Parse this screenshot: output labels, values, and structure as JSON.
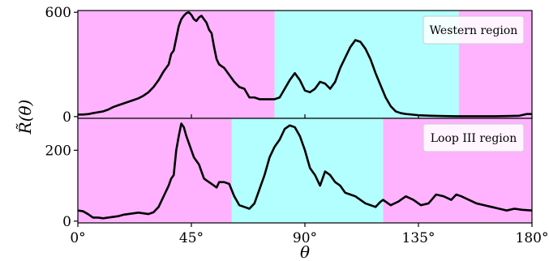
{
  "chart_data": [
    {
      "type": "line",
      "panel": "top",
      "annotation": "Western region",
      "xlim": [
        0,
        180
      ],
      "ylim": [
        -10,
        610
      ],
      "yticks": [
        0,
        600
      ],
      "ytick_labels": [
        "0",
        "600"
      ],
      "shaded_regions": [
        {
          "start": 0,
          "end": 78,
          "color": "#ffb3ff"
        },
        {
          "start": 78,
          "end": 151,
          "color": "#b3ffff"
        },
        {
          "start": 151,
          "end": 180,
          "color": "#ffb3ff"
        }
      ],
      "x": [
        0,
        2,
        4,
        6,
        8,
        10,
        12,
        14,
        16,
        18,
        20,
        22,
        24,
        26,
        28,
        30,
        32,
        34,
        36,
        37,
        38,
        39,
        40,
        41,
        42,
        43,
        44,
        45,
        46,
        47,
        48,
        49,
        50,
        51,
        52,
        53,
        54,
        55,
        56,
        58,
        60,
        62,
        64,
        66,
        68,
        70,
        72,
        74,
        76,
        78,
        80,
        82,
        84,
        86,
        88,
        90,
        92,
        94,
        96,
        98,
        100,
        102,
        104,
        106,
        108,
        110,
        112,
        114,
        116,
        118,
        120,
        122,
        124,
        126,
        128,
        130,
        135,
        140,
        145,
        150,
        155,
        160,
        165,
        170,
        175,
        178,
        180
      ],
      "values": [
        12,
        12,
        14,
        20,
        25,
        30,
        40,
        55,
        65,
        75,
        85,
        95,
        105,
        120,
        140,
        170,
        210,
        260,
        300,
        360,
        380,
        450,
        520,
        560,
        580,
        595,
        600,
        585,
        560,
        550,
        570,
        580,
        560,
        540,
        500,
        480,
        400,
        330,
        300,
        280,
        240,
        200,
        170,
        160,
        110,
        110,
        100,
        100,
        100,
        100,
        110,
        160,
        210,
        250,
        210,
        150,
        140,
        160,
        200,
        190,
        160,
        200,
        280,
        340,
        400,
        440,
        430,
        390,
        330,
        250,
        180,
        110,
        60,
        30,
        20,
        15,
        8,
        5,
        3,
        2,
        2,
        2,
        2,
        3,
        5,
        15,
        15
      ],
      "series_color": "#000000"
    },
    {
      "type": "line",
      "panel": "bottom",
      "annotation": "Loop III region",
      "xlim": [
        0,
        180
      ],
      "ylim": [
        -5,
        290
      ],
      "yticks": [
        0,
        200
      ],
      "ytick_labels": [
        "0",
        "200"
      ],
      "xticks": [
        0,
        45,
        90,
        135,
        180
      ],
      "xtick_labels": [
        "0°",
        "45°",
        "90°",
        "135°",
        "180°"
      ],
      "shaded_regions": [
        {
          "start": 0,
          "end": 61,
          "color": "#ffb3ff"
        },
        {
          "start": 61,
          "end": 121,
          "color": "#b3ffff"
        },
        {
          "start": 121,
          "end": 180,
          "color": "#ffb3ff"
        }
      ],
      "x": [
        0,
        2,
        4,
        6,
        8,
        10,
        12,
        14,
        16,
        18,
        20,
        22,
        24,
        26,
        28,
        30,
        32,
        34,
        36,
        37,
        38,
        39,
        40,
        41,
        42,
        43,
        44,
        45,
        46,
        48,
        50,
        52,
        54,
        55,
        56,
        58,
        60,
        62,
        64,
        66,
        68,
        70,
        72,
        74,
        76,
        78,
        80,
        82,
        84,
        86,
        88,
        90,
        92,
        94,
        96,
        98,
        100,
        102,
        104,
        106,
        108,
        110,
        112,
        114,
        116,
        118,
        120,
        121,
        124,
        127,
        130,
        133,
        136,
        139,
        142,
        145,
        148,
        150,
        152,
        155,
        158,
        161,
        164,
        167,
        170,
        173,
        176,
        180
      ],
      "values": [
        30,
        28,
        20,
        10,
        10,
        8,
        10,
        12,
        14,
        18,
        20,
        22,
        24,
        22,
        20,
        25,
        40,
        70,
        100,
        120,
        130,
        200,
        240,
        275,
        265,
        240,
        220,
        200,
        180,
        160,
        120,
        110,
        100,
        95,
        110,
        110,
        105,
        70,
        45,
        40,
        35,
        50,
        90,
        130,
        180,
        210,
        230,
        260,
        270,
        265,
        240,
        200,
        150,
        130,
        100,
        140,
        130,
        110,
        100,
        80,
        75,
        70,
        60,
        50,
        45,
        40,
        55,
        60,
        45,
        55,
        70,
        60,
        45,
        50,
        75,
        70,
        60,
        75,
        70,
        60,
        50,
        45,
        40,
        35,
        30,
        35,
        32,
        30
      ],
      "series_color": "#000000"
    }
  ],
  "axes": {
    "xlabel": "θ",
    "ylabel": "R̃(θ)"
  }
}
